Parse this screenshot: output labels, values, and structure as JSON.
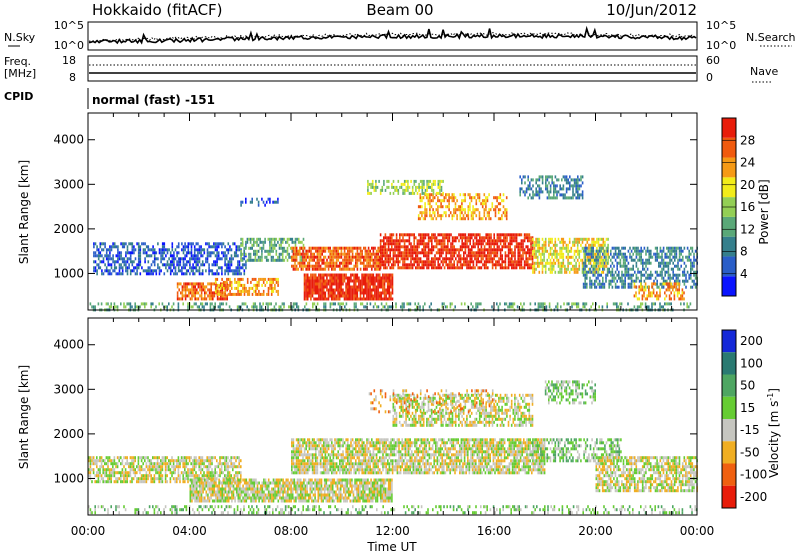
{
  "header": {
    "title": "Hokkaido (fitACF)",
    "beam": "Beam 00",
    "date": "10/Jun/2012"
  },
  "nsky_panel": {
    "left_label": "N.Sky",
    "left_ticks": [
      "10^5",
      "10^0"
    ],
    "right_ticks": [
      "10^5",
      "10^0"
    ],
    "right_label": "N.Search"
  },
  "freq_panel": {
    "left_label_1": "Freq.",
    "left_label_2": "[MHz]",
    "left_ticks": [
      "18",
      "8"
    ],
    "right_ticks": [
      "60",
      "0"
    ],
    "right_label": "Nave"
  },
  "cpid": {
    "label": "CPID",
    "mode": "normal (fast) -151"
  },
  "chart_data": [
    {
      "type": "heatmap",
      "name": "power-panel",
      "ylabel": "Slant Range [km]",
      "ylim": [
        180,
        4600
      ],
      "yticks": [
        1000,
        2000,
        3000,
        4000
      ],
      "x_range_hours": [
        0,
        24
      ],
      "colorbar": {
        "label": "Power [dB]",
        "min": 0,
        "max": 32,
        "ticks": [
          "4",
          "8",
          "12",
          "16",
          "20",
          "24",
          "28"
        ],
        "tick_values": [
          4,
          8,
          12,
          16,
          20,
          24,
          28
        ],
        "colors": [
          "#0a14ff",
          "#2a5ec8",
          "#357f8c",
          "#5aa878",
          "#93cf55",
          "#f2ec1a",
          "#f59a16",
          "#f05a0e",
          "#e81c0a"
        ]
      },
      "bands": [
        {
          "t0": 0.2,
          "t1": 6.2,
          "r0": 1000,
          "r1": 1700,
          "level": 1,
          "density": 0.55
        },
        {
          "t0": 3.5,
          "t1": 5.5,
          "r0": 400,
          "r1": 800,
          "level": 7,
          "density": 0.7
        },
        {
          "t0": 5.0,
          "t1": 7.5,
          "r0": 550,
          "r1": 900,
          "level": 6,
          "density": 0.6
        },
        {
          "t0": 6.0,
          "t1": 8.5,
          "r0": 1300,
          "r1": 1800,
          "level": 3,
          "density": 0.55
        },
        {
          "t0": 8.5,
          "t1": 12.0,
          "r0": 400,
          "r1": 1000,
          "level": 8,
          "density": 0.9
        },
        {
          "t0": 8.0,
          "t1": 11.5,
          "r0": 1100,
          "r1": 1600,
          "level": 7,
          "density": 0.8
        },
        {
          "t0": 11.5,
          "t1": 17.5,
          "r0": 1100,
          "r1": 1900,
          "level": 8,
          "density": 0.75
        },
        {
          "t0": 13.0,
          "t1": 16.5,
          "r0": 2200,
          "r1": 2800,
          "level": 6,
          "density": 0.5
        },
        {
          "t0": 11.0,
          "t1": 14.0,
          "r0": 2800,
          "r1": 3100,
          "level": 4,
          "density": 0.5
        },
        {
          "t0": 17.5,
          "t1": 20.5,
          "r0": 1000,
          "r1": 1800,
          "level": 5,
          "density": 0.65
        },
        {
          "t0": 17.0,
          "t1": 19.5,
          "r0": 2700,
          "r1": 3200,
          "level": 2,
          "density": 0.55
        },
        {
          "t0": 19.5,
          "t1": 24.0,
          "r0": 700,
          "r1": 1600,
          "level": 2,
          "density": 0.55
        },
        {
          "t0": 21.5,
          "t1": 23.5,
          "r0": 450,
          "r1": 800,
          "level": 6,
          "density": 0.5
        },
        {
          "t0": 6.0,
          "t1": 7.5,
          "r0": 2500,
          "r1": 2700,
          "level": 1,
          "density": 0.4
        },
        {
          "t0": 0.0,
          "t1": 24.0,
          "r0": 200,
          "r1": 350,
          "level": 3,
          "density": 0.35
        }
      ]
    },
    {
      "type": "heatmap",
      "name": "velocity-panel",
      "ylabel": "Slant Range [km]",
      "ylim": [
        180,
        4600
      ],
      "yticks": [
        1000,
        2000,
        3000,
        4000
      ],
      "x_range_hours": [
        0,
        24
      ],
      "colorbar": {
        "label": "Velocity [m s",
        "label_sup": "-1",
        "label_end": "]",
        "ticks": [
          "200",
          "100",
          "50",
          "15",
          "-15",
          "-50",
          "-100",
          "-200"
        ],
        "colors": [
          "#1428d8",
          "#2a7a72",
          "#4ea662",
          "#66cc33",
          "#c6c6c0",
          "#f0ae22",
          "#f06010",
          "#e81c0a"
        ]
      },
      "bands": [
        {
          "t0": 0.0,
          "t1": 6.0,
          "r0": 900,
          "r1": 1500,
          "level": 4,
          "density": 0.7
        },
        {
          "t0": 4.0,
          "t1": 12.0,
          "r0": 500,
          "r1": 1000,
          "level": 4,
          "density": 0.85
        },
        {
          "t0": 8.0,
          "t1": 18.0,
          "r0": 1100,
          "r1": 1900,
          "level": 4,
          "density": 0.8
        },
        {
          "t0": 12.0,
          "t1": 17.5,
          "r0": 2200,
          "r1": 2900,
          "level": 4,
          "density": 0.6
        },
        {
          "t0": 17.5,
          "t1": 21.0,
          "r0": 1400,
          "r1": 1900,
          "level": 3,
          "density": 0.55
        },
        {
          "t0": 18.0,
          "t1": 20.0,
          "r0": 2700,
          "r1": 3200,
          "level": 3,
          "density": 0.5
        },
        {
          "t0": 20.0,
          "t1": 24.0,
          "r0": 700,
          "r1": 1500,
          "level": 4,
          "density": 0.7
        },
        {
          "t0": 11.0,
          "t1": 16.0,
          "r0": 2500,
          "r1": 3000,
          "level": 5,
          "density": 0.2
        },
        {
          "t0": 0.0,
          "t1": 24.0,
          "r0": 200,
          "r1": 400,
          "level": 3,
          "density": 0.3
        }
      ]
    }
  ],
  "time_axis": {
    "label": "Time UT",
    "ticks": [
      "00:00",
      "04:00",
      "08:00",
      "12:00",
      "16:00",
      "20:00",
      "00:00"
    ],
    "tick_hours": [
      0,
      4,
      8,
      12,
      16,
      20,
      24
    ]
  }
}
